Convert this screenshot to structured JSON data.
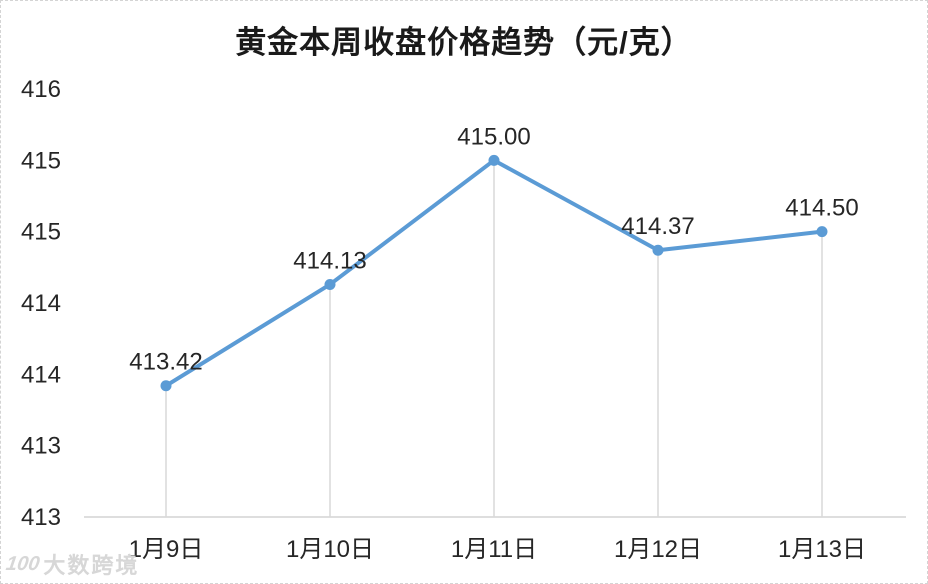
{
  "chart_data": {
    "type": "line",
    "title": "黄金本周收盘价格趋势（元/克）",
    "categories": [
      "1月9日",
      "1月10日",
      "1月11日",
      "1月12日",
      "1月13日"
    ],
    "values": [
      413.42,
      414.13,
      415.0,
      414.37,
      414.5
    ],
    "point_labels": [
      "413.42",
      "414.13",
      "415.00",
      "414.37",
      "414.50"
    ],
    "xlabel": "",
    "ylabel": "",
    "ylim": [
      412.5,
      415.5
    ],
    "y_axis": {
      "tick_values": [
        415.5,
        415.0,
        414.5,
        414.0,
        413.5,
        413.0,
        412.5
      ],
      "tick_labels": [
        "416",
        "415",
        "415",
        "414",
        "414",
        "413",
        "413"
      ]
    },
    "grid": "drop-lines-only",
    "legend": "none",
    "colors": {
      "line": "#5B9BD5",
      "marker": "#5B9BD5",
      "axis_line": "#D9D9D9",
      "drop_line": "#D9D9D9",
      "tick_text": "#262626",
      "data_label_text": "#262626",
      "title_text": "#1a1a1a"
    }
  },
  "watermark": {
    "logo": "100",
    "text": "大数跨境"
  }
}
